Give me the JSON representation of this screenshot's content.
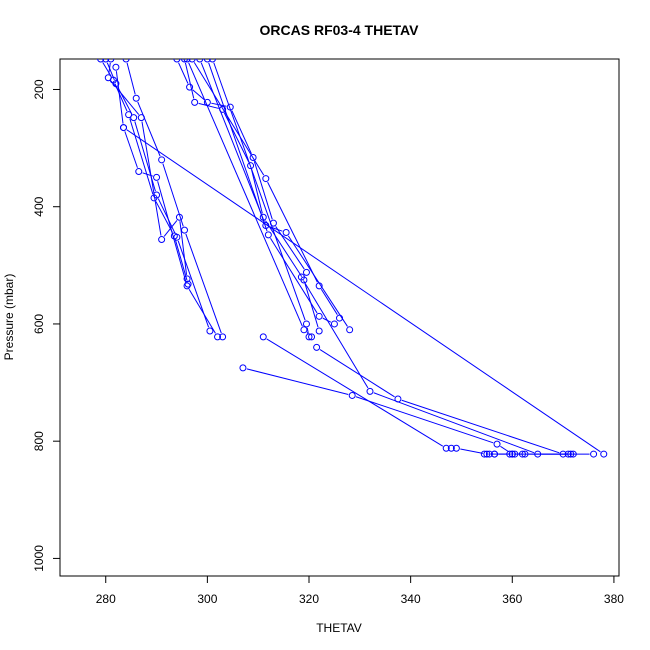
{
  "chart_data": {
    "type": "line",
    "title": "ORCAS RF03-4 THETAV",
    "xlabel": "THETAV",
    "ylabel": "Pressure (mbar)",
    "xlim": [
      271,
      381
    ],
    "ylim": [
      1030,
      148
    ],
    "y_reversed": true,
    "xticks": [
      280,
      300,
      320,
      340,
      360,
      380
    ],
    "yticks": [
      200,
      400,
      600,
      800,
      1000
    ],
    "markers": "open-circle",
    "grid": false,
    "colors": {
      "series": "#0000ff",
      "axis": "#000000",
      "background": "#ffffff"
    },
    "series": [
      {
        "x": [
          279.0,
          281.5,
          284.5,
          289.5,
          293.5,
          296.2
        ],
        "y": [
          148,
          184,
          243,
          385,
          450,
          532
        ]
      },
      {
        "x": [
          280.0,
          282.0,
          285.5,
          290.0,
          294.0,
          300.5
        ],
        "y": [
          148,
          190,
          248,
          380,
          452,
          612
        ]
      },
      {
        "x": [
          281.0,
          280.5,
          287.0,
          291.0,
          294.5,
          296.0
        ],
        "y": [
          148,
          180,
          248,
          456,
          418,
          523
        ]
      },
      {
        "x": [
          282.0,
          283.5,
          286.5,
          290.0,
          296.0,
          302.0
        ],
        "y": [
          162,
          265,
          340,
          350,
          535,
          622
        ]
      },
      {
        "x": [
          284.0,
          286.0,
          291.0,
          295.5,
          303.0
        ],
        "y": [
          148,
          215,
          320,
          440,
          622
        ]
      },
      {
        "x": [
          283.5,
          378.0
        ],
        "y": [
          265,
          822
        ]
      },
      {
        "x": [
          294.0,
          296.5,
          300.0,
          304.5,
          309.0,
          313.0,
          319.5
        ],
        "y": [
          148,
          196,
          222,
          230,
          316,
          428,
          512
        ]
      },
      {
        "x": [
          295.5,
          297.5,
          303.0,
          308.5,
          311.0,
          319.0,
          322.0
        ],
        "y": [
          148,
          222,
          234,
          330,
          418,
          525,
          612
        ]
      },
      {
        "x": [
          297.0,
          311.5,
          322.0,
          326.0
        ],
        "y": [
          148,
          352,
          535,
          590
        ]
      },
      {
        "x": [
          298.5,
          311.5,
          315.5,
          328.0
        ],
        "y": [
          148,
          432,
          444,
          610
        ]
      },
      {
        "x": [
          300.0,
          312.0,
          322.0,
          325.0
        ],
        "y": [
          148,
          448,
          587,
          600
        ]
      },
      {
        "x": [
          301.0,
          319.5,
          320.0
        ],
        "y": [
          148,
          600,
          622
        ]
      },
      {
        "x": [
          296.0,
          319.0,
          320.5
        ],
        "y": [
          148,
          610,
          622
        ]
      },
      {
        "x": [
          311.0,
          347.0,
          348.0
        ],
        "y": [
          622,
          812,
          812
        ]
      },
      {
        "x": [
          307.0,
          328.5,
          357.0,
          360.0
        ],
        "y": [
          675,
          722,
          805,
          822
        ]
      },
      {
        "x": [
          318.5,
          332.0,
          365.0,
          372.0
        ],
        "y": [
          520,
          715,
          822,
          822
        ]
      },
      {
        "x": [
          321.5,
          337.5,
          370.0,
          371.0
        ],
        "y": [
          640,
          728,
          822,
          822
        ]
      },
      {
        "x": [
          349.0,
          355.0,
          359.5,
          362.5,
          376.0
        ],
        "y": [
          812,
          822,
          822,
          822,
          822
        ]
      },
      {
        "x": [
          354.5,
          356.5,
          360.0,
          362.0
        ],
        "y": [
          822,
          822,
          822,
          822
        ]
      },
      {
        "x": [
          355.5,
          356.5,
          360.5,
          371.5
        ],
        "y": [
          822,
          822,
          822,
          822
        ]
      }
    ]
  }
}
